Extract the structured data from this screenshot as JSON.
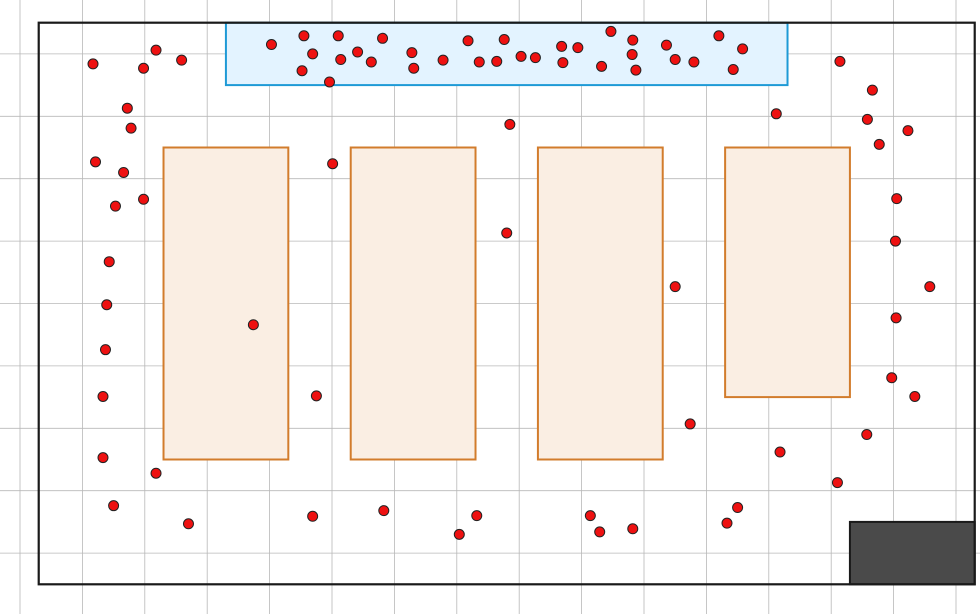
{
  "colors": {
    "background": "#ffffff",
    "grid": "#b8b8b8",
    "wall": "#1a1a1a",
    "entrance_fill": "#e3f3ff",
    "entrance_stroke": "#1e9ad6",
    "shelf_fill": "#faeee3",
    "shelf_stroke": "#d27c2c",
    "block_fill": "#4a4a4a",
    "block_stroke": "#1a1a1a",
    "point_fill": "#ee1111",
    "point_stroke": "#222222"
  },
  "map": {
    "grid_cell_m": 1,
    "room": [
      0.3,
      0.5,
      15.3,
      9.5
    ],
    "entrance_zone": [
      3.3,
      0.5,
      12.3,
      1.5
    ],
    "shelves": [
      [
        2.3,
        2.5,
        4.3,
        7.5
      ],
      [
        5.3,
        2.5,
        7.3,
        7.5
      ],
      [
        8.3,
        2.5,
        10.3,
        7.5
      ],
      [
        11.3,
        2.5,
        13.3,
        6.5
      ]
    ],
    "dark_block": [
      13.3,
      8.5,
      15.3,
      9.5
    ]
  },
  "points": [
    [
      1.17,
      1.16
    ],
    [
      2.18,
      0.94
    ],
    [
      1.98,
      1.23
    ],
    [
      2.59,
      1.1
    ],
    [
      4.03,
      0.85
    ],
    [
      4.55,
      0.71
    ],
    [
      4.69,
      1.0
    ],
    [
      4.52,
      1.27
    ],
    [
      5.1,
      0.71
    ],
    [
      5.14,
      1.09
    ],
    [
      4.96,
      1.45
    ],
    [
      5.41,
      0.97
    ],
    [
      5.63,
      1.13
    ],
    [
      5.81,
      0.75
    ],
    [
      6.28,
      0.98
    ],
    [
      6.31,
      1.23
    ],
    [
      6.78,
      1.1
    ],
    [
      7.18,
      0.79
    ],
    [
      7.36,
      1.13
    ],
    [
      7.64,
      1.12
    ],
    [
      7.76,
      0.77
    ],
    [
      8.03,
      1.04
    ],
    [
      8.26,
      1.06
    ],
    [
      8.68,
      0.88
    ],
    [
      8.7,
      1.14
    ],
    [
      8.94,
      0.9
    ],
    [
      9.32,
      1.2
    ],
    [
      9.47,
      0.64
    ],
    [
      9.82,
      0.78
    ],
    [
      9.81,
      1.01
    ],
    [
      9.87,
      1.26
    ],
    [
      10.36,
      0.86
    ],
    [
      10.5,
      1.09
    ],
    [
      10.8,
      1.13
    ],
    [
      11.2,
      0.71
    ],
    [
      11.43,
      1.25
    ],
    [
      11.58,
      0.92
    ],
    [
      13.14,
      1.12
    ],
    [
      1.72,
      1.87
    ],
    [
      1.78,
      2.19
    ],
    [
      1.21,
      2.73
    ],
    [
      1.66,
      2.9
    ],
    [
      1.53,
      3.44
    ],
    [
      1.98,
      3.33
    ],
    [
      7.85,
      2.13
    ],
    [
      5.01,
      2.76
    ],
    [
      12.12,
      1.96
    ],
    [
      13.66,
      1.58
    ],
    [
      13.58,
      2.05
    ],
    [
      13.77,
      2.45
    ],
    [
      14.23,
      2.23
    ],
    [
      14.05,
      3.32
    ],
    [
      14.03,
      4.0
    ],
    [
      1.43,
      4.33
    ],
    [
      7.8,
      3.87
    ],
    [
      1.39,
      5.02
    ],
    [
      3.74,
      5.34
    ],
    [
      10.5,
      4.73
    ],
    [
      14.58,
      4.73
    ],
    [
      14.04,
      5.23
    ],
    [
      1.37,
      5.74
    ],
    [
      1.33,
      6.49
    ],
    [
      4.75,
      6.48
    ],
    [
      13.97,
      6.19
    ],
    [
      14.34,
      6.49
    ],
    [
      10.74,
      6.93
    ],
    [
      13.57,
      7.1
    ],
    [
      12.18,
      7.38
    ],
    [
      1.33,
      7.47
    ],
    [
      2.18,
      7.72
    ],
    [
      13.1,
      7.87
    ],
    [
      1.5,
      8.24
    ],
    [
      2.7,
      8.53
    ],
    [
      4.69,
      8.41
    ],
    [
      5.83,
      8.32
    ],
    [
      7.32,
      8.4
    ],
    [
      7.04,
      8.7
    ],
    [
      9.14,
      8.4
    ],
    [
      9.29,
      8.66
    ],
    [
      9.82,
      8.61
    ],
    [
      11.5,
      8.27
    ],
    [
      11.33,
      8.52
    ]
  ]
}
